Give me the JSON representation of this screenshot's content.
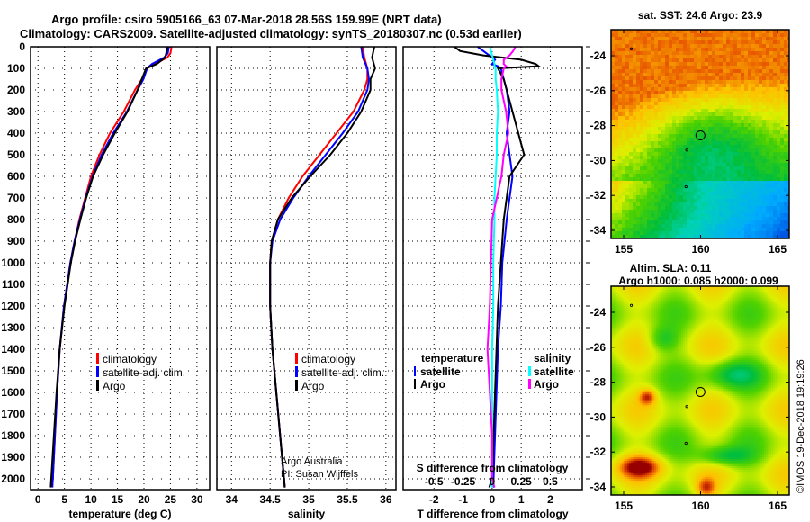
{
  "title": {
    "line1": "Argo profile: csiro 5905166_63 07-Mar-2018 28.56S 159.99E (NRT data)",
    "line2": "Climatology: CARS2009. Satellite-adjusted climatology: synTS_20180307.nc (0.53d earlier)"
  },
  "colors": {
    "climatology": "#ff0000",
    "satellite": "#0000ff",
    "argo": "#000000",
    "sal_satellite": "#00ffff",
    "sal_argo": "#ff00ff"
  },
  "chart_data": [
    {
      "type": "line",
      "name": "temperature",
      "xlabel": "temperature (deg C)",
      "ylabel": "depth",
      "xlim": [
        -1.4,
        32.4
      ],
      "ylim": [
        2050,
        0
      ],
      "xticks": [
        0,
        5,
        10,
        15,
        20,
        25,
        30
      ],
      "yticks": [
        0,
        100,
        200,
        300,
        400,
        500,
        600,
        700,
        800,
        900,
        1000,
        1100,
        1200,
        1300,
        1400,
        1500,
        1600,
        1700,
        1800,
        1900,
        2000
      ],
      "grid": true,
      "legend": [
        "climatology",
        "satellite-adj. clim.",
        "Argo"
      ],
      "depth": [
        0,
        30,
        50,
        80,
        100,
        150,
        200,
        300,
        400,
        500,
        600,
        700,
        800,
        900,
        1000,
        1200,
        1400,
        1600,
        1800,
        2000,
        2040
      ],
      "series": [
        {
          "name": "climatology",
          "color": "#ff0000",
          "values": [
            25.2,
            25.0,
            24.4,
            22.0,
            20.6,
            19.6,
            18.3,
            16.2,
            13.6,
            11.6,
            10.0,
            8.9,
            7.8,
            6.9,
            6.1,
            4.9,
            4.1,
            3.6,
            3.2,
            2.8,
            2.7
          ]
        },
        {
          "name": "satellite-adj. clim.",
          "color": "#0000ff",
          "values": [
            24.7,
            24.5,
            23.8,
            21.5,
            20.6,
            19.9,
            18.8,
            16.8,
            14.2,
            12.0,
            10.3,
            9.0,
            7.9,
            6.9,
            6.1,
            4.9,
            4.1,
            3.6,
            3.2,
            2.8,
            2.7
          ]
        },
        {
          "name": "Argo",
          "color": "#000000",
          "values": [
            24.4,
            24.2,
            24.0,
            22.4,
            20.4,
            19.6,
            18.8,
            16.9,
            14.5,
            12.3,
            10.4,
            9.1,
            8.0,
            7.0,
            6.2,
            5.0,
            4.1,
            3.5,
            3.0,
            2.5,
            2.4
          ]
        }
      ]
    },
    {
      "type": "line",
      "name": "salinity",
      "xlabel": "salinity",
      "xlim": [
        33.81,
        36.13
      ],
      "ylim": [
        2050,
        0
      ],
      "xticks": [
        34,
        34.5,
        35,
        35.5,
        36
      ],
      "grid": true,
      "legend": [
        "climatology",
        "satellite-adj. clim.",
        "Argo"
      ],
      "annotation": [
        "Argo Australia",
        "PI: Susan Wijffels"
      ],
      "depth": [
        0,
        50,
        100,
        150,
        200,
        300,
        400,
        500,
        600,
        700,
        800,
        900,
        1000,
        1200,
        1400,
        1600,
        1800,
        2000,
        2040
      ],
      "series": [
        {
          "name": "climatology",
          "color": "#ff0000",
          "values": [
            35.7,
            35.72,
            35.76,
            35.76,
            35.72,
            35.58,
            35.36,
            35.14,
            34.92,
            34.74,
            34.6,
            34.52,
            34.5,
            34.5,
            34.53,
            34.58,
            34.63,
            34.68,
            34.69
          ]
        },
        {
          "name": "satellite-adj. clim.",
          "color": "#0000ff",
          "values": [
            35.68,
            35.7,
            35.76,
            35.78,
            35.76,
            35.64,
            35.44,
            35.22,
            35.0,
            34.8,
            34.63,
            34.53,
            34.5,
            34.5,
            34.53,
            34.58,
            34.63,
            34.68,
            34.69
          ]
        },
        {
          "name": "Argo",
          "color": "#000000",
          "values": [
            35.85,
            35.82,
            35.86,
            35.8,
            35.8,
            35.68,
            35.5,
            35.28,
            35.02,
            34.78,
            34.6,
            34.52,
            34.5,
            34.5,
            34.53,
            34.58,
            34.63,
            34.68,
            34.69
          ]
        }
      ]
    },
    {
      "type": "line",
      "name": "difference",
      "xlabel": "T difference from climatology",
      "xlabel2": "S difference from climatology",
      "xlim": [
        -3.06,
        3.1
      ],
      "xticks": [
        -2,
        -1,
        0,
        1,
        2
      ],
      "xticks2": [
        -0.5,
        -0.25,
        0,
        0.25,
        0.5
      ],
      "xticks2_labels": [
        "-0.5",
        "-0.25",
        "0",
        "0.25",
        "0.5"
      ],
      "grid": true,
      "legend_t": {
        "title": "temperature",
        "items": [
          "satellite",
          "Argo"
        ]
      },
      "legend_s": {
        "title": "salinity",
        "items": [
          "satellite",
          "Argo"
        ]
      },
      "depth": [
        0,
        20,
        40,
        60,
        80,
        90,
        100,
        150,
        200,
        300,
        400,
        500,
        600,
        700,
        800,
        1000,
        1200,
        1400,
        1600,
        1800,
        2000,
        2040
      ],
      "series": [
        {
          "name": "temperature satellite",
          "color": "#0000ff",
          "scale": "T",
          "values": [
            -0.5,
            -0.3,
            -0.1,
            0.1,
            0.0,
            0.2,
            0.3,
            0.4,
            0.5,
            0.6,
            0.5,
            0.6,
            0.7,
            0.6,
            0.5,
            0.35,
            0.3,
            0.2,
            0.15,
            0.1,
            0.05,
            0.05
          ]
        },
        {
          "name": "temperature Argo",
          "color": "#000000",
          "scale": "T",
          "values": [
            -1.3,
            -1.1,
            -0.3,
            1.0,
            1.5,
            1.6,
            0.2,
            0.4,
            0.5,
            0.7,
            0.9,
            1.1,
            0.6,
            0.5,
            0.4,
            0.3,
            0.2,
            0.15,
            0.1,
            0.05,
            0.0,
            -0.1
          ]
        },
        {
          "name": "salinity satellite",
          "color": "#00ffff",
          "scale": "S",
          "values": [
            -0.02,
            -0.01,
            0.0,
            0.01,
            0.02,
            0.02,
            0.03,
            0.03,
            0.04,
            0.05,
            0.04,
            0.04,
            0.03,
            0.02,
            0.02,
            0.01,
            0.01,
            0.0,
            0.0,
            0.0,
            0.0,
            0.0
          ]
        },
        {
          "name": "salinity Argo",
          "color": "#ff00ff",
          "scale": "S",
          "values": [
            0.2,
            0.18,
            0.15,
            0.1,
            0.1,
            0.12,
            0.1,
            0.08,
            0.08,
            0.12,
            0.14,
            0.1,
            0.08,
            0.04,
            0.0,
            -0.01,
            -0.02,
            -0.04,
            -0.02,
            0.0,
            0.0,
            0.02
          ]
        }
      ]
    }
  ],
  "map_sst": {
    "title": "sat. SST: 24.6 Argo: 23.9",
    "lon_ticks": [
      155,
      160,
      165
    ],
    "lat_ticks": [
      -24,
      -26,
      -28,
      -30,
      -32,
      -34
    ],
    "profile_lon": 159.99,
    "profile_lat": -28.56
  },
  "map_sla": {
    "title1": "Altim. SLA: 0.11",
    "title2": "Argo h1000: 0.085 h2000: 0.099",
    "lon_ticks": [
      155,
      160,
      165
    ],
    "lat_ticks": [
      -24,
      -26,
      -28,
      -30,
      -32,
      -34
    ],
    "profile_lon": 159.99,
    "profile_lat": -28.56
  },
  "footer": {
    "stamp": "©IMOS 19-Dec-2018 19:19:26"
  }
}
